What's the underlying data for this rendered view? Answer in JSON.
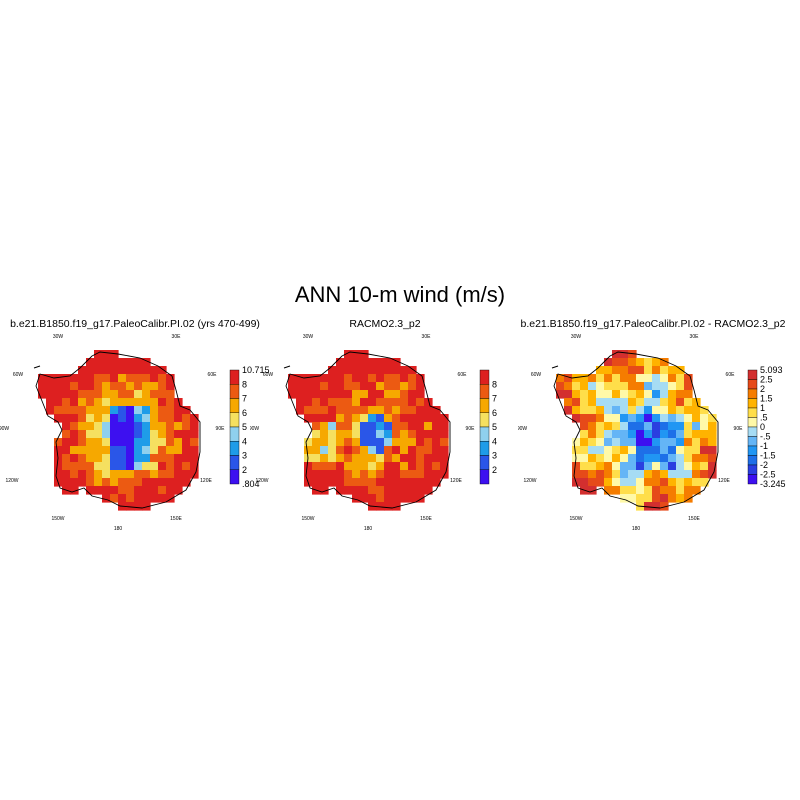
{
  "main_title": "ANN 10-m wind (m/s)",
  "colors": {
    "wind_scale": [
      "#3d10f0",
      "#2a56e8",
      "#1f9ce8",
      "#8fd0ee",
      "#f5e060",
      "#f6a800",
      "#ec5a12",
      "#dd2020"
    ],
    "diff_scale": [
      "#3d10f0",
      "#2a3fe0",
      "#1e6fe8",
      "#2196f3",
      "#64b5f6",
      "#a6dcf4",
      "#fff9a8",
      "#ffde4a",
      "#ffb300",
      "#f57c00",
      "#e64a19",
      "#d32f2f"
    ]
  },
  "lon_labels": [
    "30W",
    "30E",
    "60W",
    "60E",
    "90W",
    "90E",
    "120W",
    "120E",
    "150W",
    "150E",
    "180"
  ],
  "panels": [
    {
      "title": "b.e21.B1850.f19_g17.PaleoCalibr.PI.02 (yrs 470-499)",
      "scale": "wind_scale",
      "pattern": "model",
      "colorbar_labels": [
        "10.715",
        "8",
        "7",
        "6",
        "5",
        "4",
        "3",
        "2",
        ".804"
      ]
    },
    {
      "title": "RACMO2.3_p2",
      "scale": "wind_scale",
      "pattern": "racmo",
      "colorbar_labels": [
        "8",
        "7",
        "6",
        "5",
        "4",
        "3",
        "2"
      ]
    },
    {
      "title": "b.e21.B1850.f19_g17.PaleoCalibr.PI.02 - RACMO2.3_p2",
      "scale": "diff_scale",
      "pattern": "diff",
      "colorbar_labels": [
        "5.093",
        "2.5",
        "2",
        "1.5",
        "1",
        ".5",
        "0",
        "-.5",
        "-1",
        "-1.5",
        "-2",
        "-2.5",
        "-3.245"
      ]
    }
  ]
}
